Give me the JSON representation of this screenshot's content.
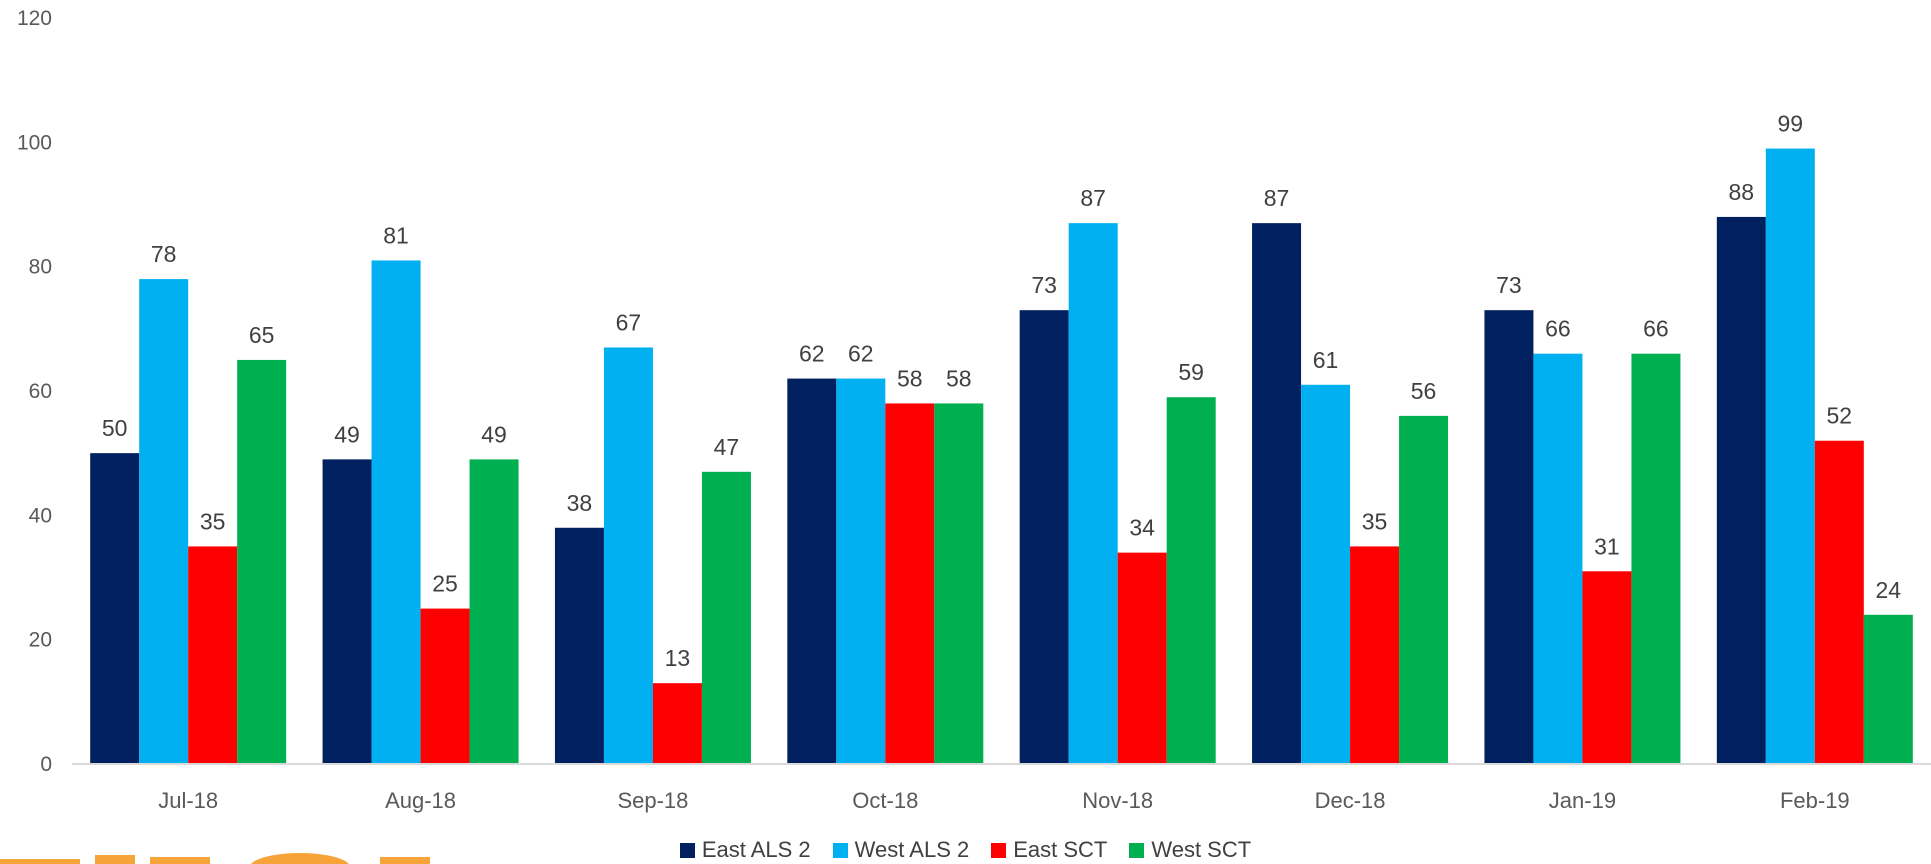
{
  "chart_data": {
    "type": "bar",
    "title": "",
    "xlabel": "",
    "ylabel": "",
    "ylim": [
      0,
      120
    ],
    "yticks": [
      0,
      20,
      40,
      60,
      80,
      100,
      120
    ],
    "categories": [
      "Jul-18",
      "Aug-18",
      "Sep-18",
      "Oct-18",
      "Nov-18",
      "Dec-18",
      "Jan-19",
      "Feb-19"
    ],
    "series": [
      {
        "name": "East ALS 2",
        "color": "#002060",
        "values": [
          50,
          49,
          38,
          62,
          73,
          87,
          73,
          88
        ]
      },
      {
        "name": "West ALS 2",
        "color": "#00B0F0",
        "values": [
          78,
          81,
          67,
          62,
          87,
          61,
          66,
          99
        ]
      },
      {
        "name": "East SCT",
        "color": "#FF0000",
        "values": [
          35,
          25,
          13,
          58,
          34,
          35,
          31,
          52
        ]
      },
      {
        "name": "West SCT",
        "color": "#00B050",
        "values": [
          65,
          49,
          47,
          58,
          59,
          56,
          66,
          24
        ]
      }
    ],
    "data_labels": true,
    "grid": false,
    "legend_position": "bottom"
  },
  "colors": {
    "axis": "#D9D9D9",
    "tick_text": "#595959",
    "label_text": "#404040",
    "logo_orange": "#F6A33A"
  }
}
